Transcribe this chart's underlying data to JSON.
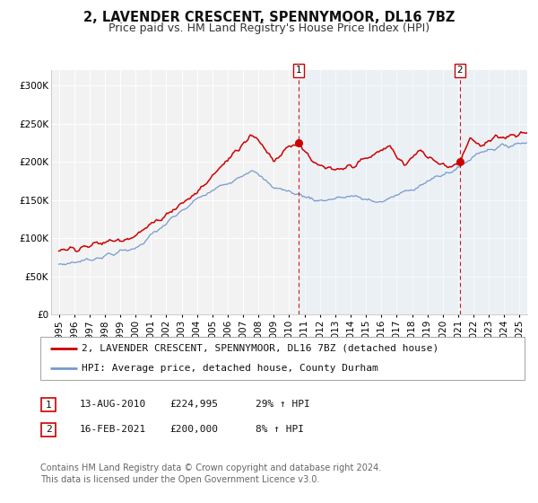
{
  "title": "2, LAVENDER CRESCENT, SPENNYMOOR, DL16 7BZ",
  "subtitle": "Price paid vs. HM Land Registry's House Price Index (HPI)",
  "background_color": "#ffffff",
  "plot_bg_color": "#f2f2f2",
  "grid_color": "#ffffff",
  "red_line_color": "#cc0000",
  "blue_line_color": "#7799cc",
  "shade_color": "#ddeeff",
  "vline_color": "#cc0000",
  "ylim": [
    0,
    320000
  ],
  "yticks": [
    0,
    50000,
    100000,
    150000,
    200000,
    250000,
    300000
  ],
  "ytick_labels": [
    "£0",
    "£50K",
    "£100K",
    "£150K",
    "£200K",
    "£250K",
    "£300K"
  ],
  "xmin_year": 1995,
  "xmax_year": 2025,
  "xtick_years": [
    1995,
    1996,
    1997,
    1998,
    1999,
    2000,
    2001,
    2002,
    2003,
    2004,
    2005,
    2006,
    2007,
    2008,
    2009,
    2010,
    2011,
    2012,
    2013,
    2014,
    2015,
    2016,
    2017,
    2018,
    2019,
    2020,
    2021,
    2022,
    2023,
    2024,
    2025
  ],
  "event1_x": 2010.617,
  "event1_y": 224995,
  "event1_label": "1",
  "event1_date": "13-AUG-2010",
  "event1_price": "£224,995",
  "event1_hpi": "29% ↑ HPI",
  "event2_x": 2021.125,
  "event2_y": 200000,
  "event2_label": "2",
  "event2_date": "16-FEB-2021",
  "event2_price": "£200,000",
  "event2_hpi": "8% ↑ HPI",
  "legend_line1": "2, LAVENDER CRESCENT, SPENNYMOOR, DL16 7BZ (detached house)",
  "legend_line2": "HPI: Average price, detached house, County Durham",
  "footer1": "Contains HM Land Registry data © Crown copyright and database right 2024.",
  "footer2": "This data is licensed under the Open Government Licence v3.0.",
  "title_fontsize": 10.5,
  "subtitle_fontsize": 9,
  "axis_fontsize": 7.5,
  "legend_fontsize": 8,
  "footer_fontsize": 7
}
